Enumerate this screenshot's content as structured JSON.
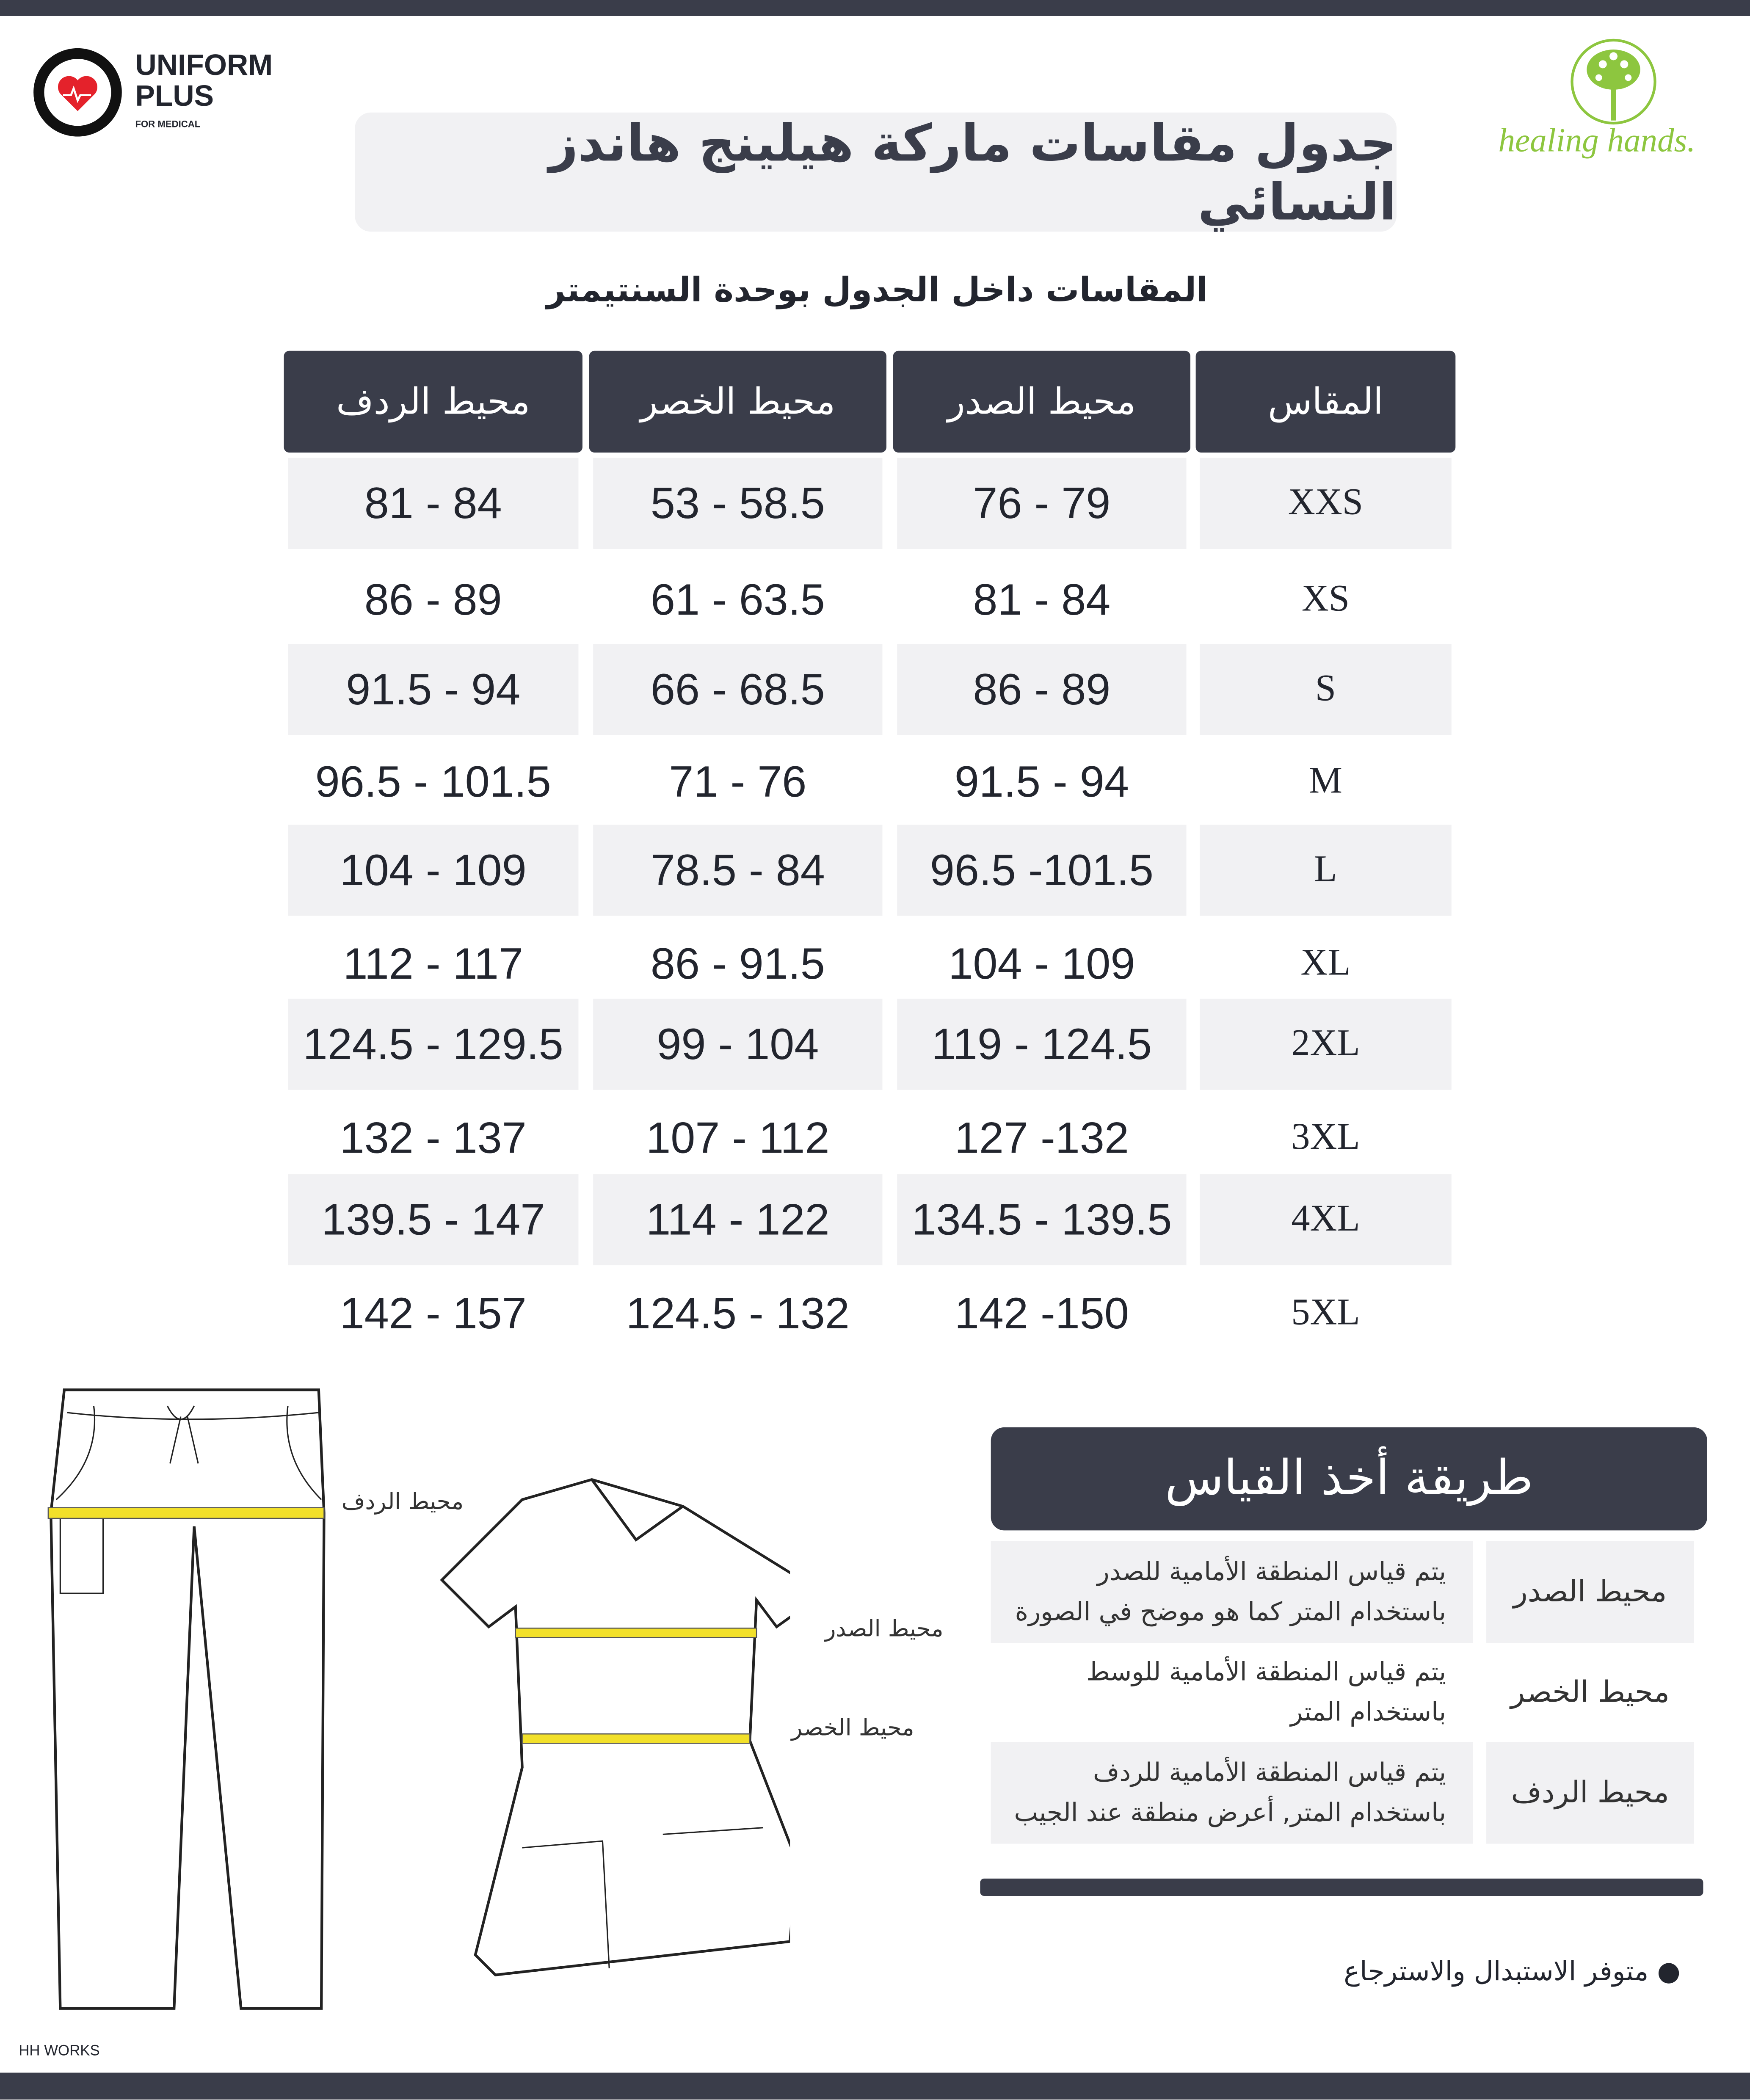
{
  "brand_left": {
    "line1": "UNIFORM",
    "line2": "PLUS",
    "tagline": "FOR MEDICAL",
    "accent": "#e4222b"
  },
  "brand_right": {
    "name": "healing hands.",
    "color": "#8dc63f"
  },
  "title": "جدول مقاسات ماركة هيلينج هاندز النسائي",
  "subtitle": "المقاسات داخل الجدول بوحدة السنتيمتر",
  "table": {
    "headers": [
      "محيط الردف",
      "محيط الخصر",
      "محيط الصدر",
      "المقاس"
    ],
    "rows": [
      {
        "hip": "81 - 84",
        "waist": "53 - 58.5",
        "chest": "76 - 79",
        "size": "XXS"
      },
      {
        "hip": "86 - 89",
        "waist": "61 - 63.5",
        "chest": "81 - 84",
        "size": "XS"
      },
      {
        "hip": "91.5 - 94",
        "waist": "66 - 68.5",
        "chest": "86 - 89",
        "size": "S"
      },
      {
        "hip": "96.5 - 101.5",
        "waist": "71 - 76",
        "chest": "91.5 - 94",
        "size": "M"
      },
      {
        "hip": "104 - 109",
        "waist": "78.5 - 84",
        "chest": "96.5 -101.5",
        "size": "L"
      },
      {
        "hip": "112 - 117",
        "waist": "86 - 91.5",
        "chest": "104 - 109",
        "size": "XL"
      },
      {
        "hip": "124.5 - 129.5",
        "waist": "99 - 104",
        "chest": "119 - 124.5",
        "size": "2XL"
      },
      {
        "hip": "132 - 137",
        "waist": "107 - 112",
        "chest": "127 -132",
        "size": "3XL"
      },
      {
        "hip": "139.5 - 147",
        "waist": "114 - 122",
        "chest": "134.5 - 139.5",
        "size": "4XL"
      },
      {
        "hip": "142 - 157",
        "waist": "124.5 - 132",
        "chest": "142 -150",
        "size": "5XL"
      }
    ]
  },
  "illustration": {
    "hip_label": "محيط الردف",
    "chest_label": "محيط الصدر",
    "waist_label": "محيط الخصر",
    "tape_color": "#f2e02a"
  },
  "how_to": {
    "title": "طريقة أخذ القياس",
    "items": [
      {
        "label": "محيط الصدر",
        "line1": "يتم قياس المنطقة الأمامية للصدر",
        "line2": "باستخدام المتر كما هو موضح في الصورة"
      },
      {
        "label": "محيط الخصر",
        "line1": "يتم قياس المنطقة الأمامية للوسط",
        "line2": "باستخدام المتر"
      },
      {
        "label": "محيط الردف",
        "line1": "يتم قياس المنطقة الأمامية للردف",
        "line2": "باستخدام المتر, أعرض منطقة عند الجيب"
      }
    ]
  },
  "note": "متوفر الاستبدال والاسترجاع",
  "footer_credit": "HH WORKS"
}
